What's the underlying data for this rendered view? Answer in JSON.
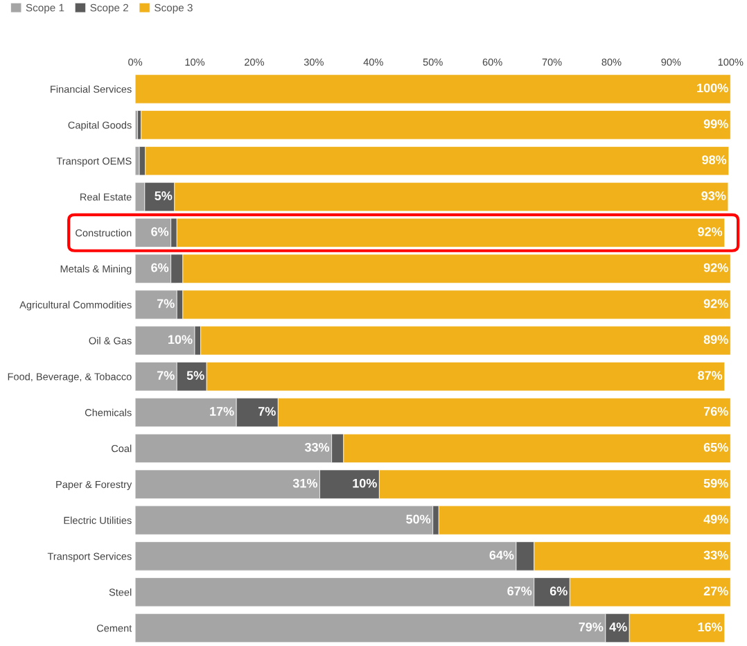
{
  "chart_data": {
    "type": "bar",
    "orientation": "horizontal",
    "stacked": true,
    "categories": [
      "Financial Services",
      "Capital Goods",
      "Transport OEMS",
      "Real Estate",
      "Construction",
      "Metals & Mining",
      "Agricultural Commodities",
      "Oil & Gas",
      "Food, Beverage, & Tobacco",
      "Chemicals",
      "Coal",
      "Paper & Forestry",
      "Electric Utilities",
      "Transport Services",
      "Steel",
      "Cement"
    ],
    "series": [
      {
        "name": "Scope 1",
        "color": "#a5a5a5",
        "values": [
          0,
          0.4,
          0.7,
          1.6,
          6,
          6,
          7,
          10,
          7,
          17,
          33,
          31,
          50,
          64,
          67,
          79
        ],
        "value_labels": [
          null,
          null,
          null,
          null,
          "6%",
          "6%",
          "7%",
          "10%",
          "7%",
          "17%",
          "33%",
          "31%",
          "50%",
          "64%",
          "67%",
          "79%"
        ]
      },
      {
        "name": "Scope 2",
        "color": "#5b5b5b",
        "values": [
          0,
          0.6,
          1,
          5,
          1,
          2,
          1,
          1,
          5,
          7,
          2,
          10,
          1,
          3,
          6,
          4
        ],
        "value_labels": [
          null,
          null,
          null,
          "5%",
          null,
          null,
          null,
          null,
          "5%",
          "7%",
          null,
          "10%",
          null,
          null,
          "6%",
          "4%"
        ]
      },
      {
        "name": "Scope 3",
        "color": "#f0b11b",
        "values": [
          100,
          99,
          98,
          93,
          92,
          92,
          92,
          89,
          87,
          76,
          65,
          59,
          49,
          33,
          27,
          16
        ],
        "value_labels": [
          "100%",
          "99%",
          "98%",
          "93%",
          "92%",
          "92%",
          "92%",
          "89%",
          "87%",
          "76%",
          "65%",
          "59%",
          "49%",
          "33%",
          "27%",
          "16%"
        ]
      }
    ],
    "xlim": [
      0,
      100
    ],
    "xticks": [
      {
        "value": 0,
        "label": "0%"
      },
      {
        "value": 10,
        "label": "10%"
      },
      {
        "value": 20,
        "label": "20%"
      },
      {
        "value": 30,
        "label": "30%"
      },
      {
        "value": 40,
        "label": "40%"
      },
      {
        "value": 50,
        "label": "50%"
      },
      {
        "value": 60,
        "label": "60%"
      },
      {
        "value": 70,
        "label": "70%"
      },
      {
        "value": 80,
        "label": "80%"
      },
      {
        "value": 90,
        "label": "90%"
      },
      {
        "value": 100,
        "label": "100%"
      }
    ],
    "grid": false,
    "legend": "top left"
  }
}
